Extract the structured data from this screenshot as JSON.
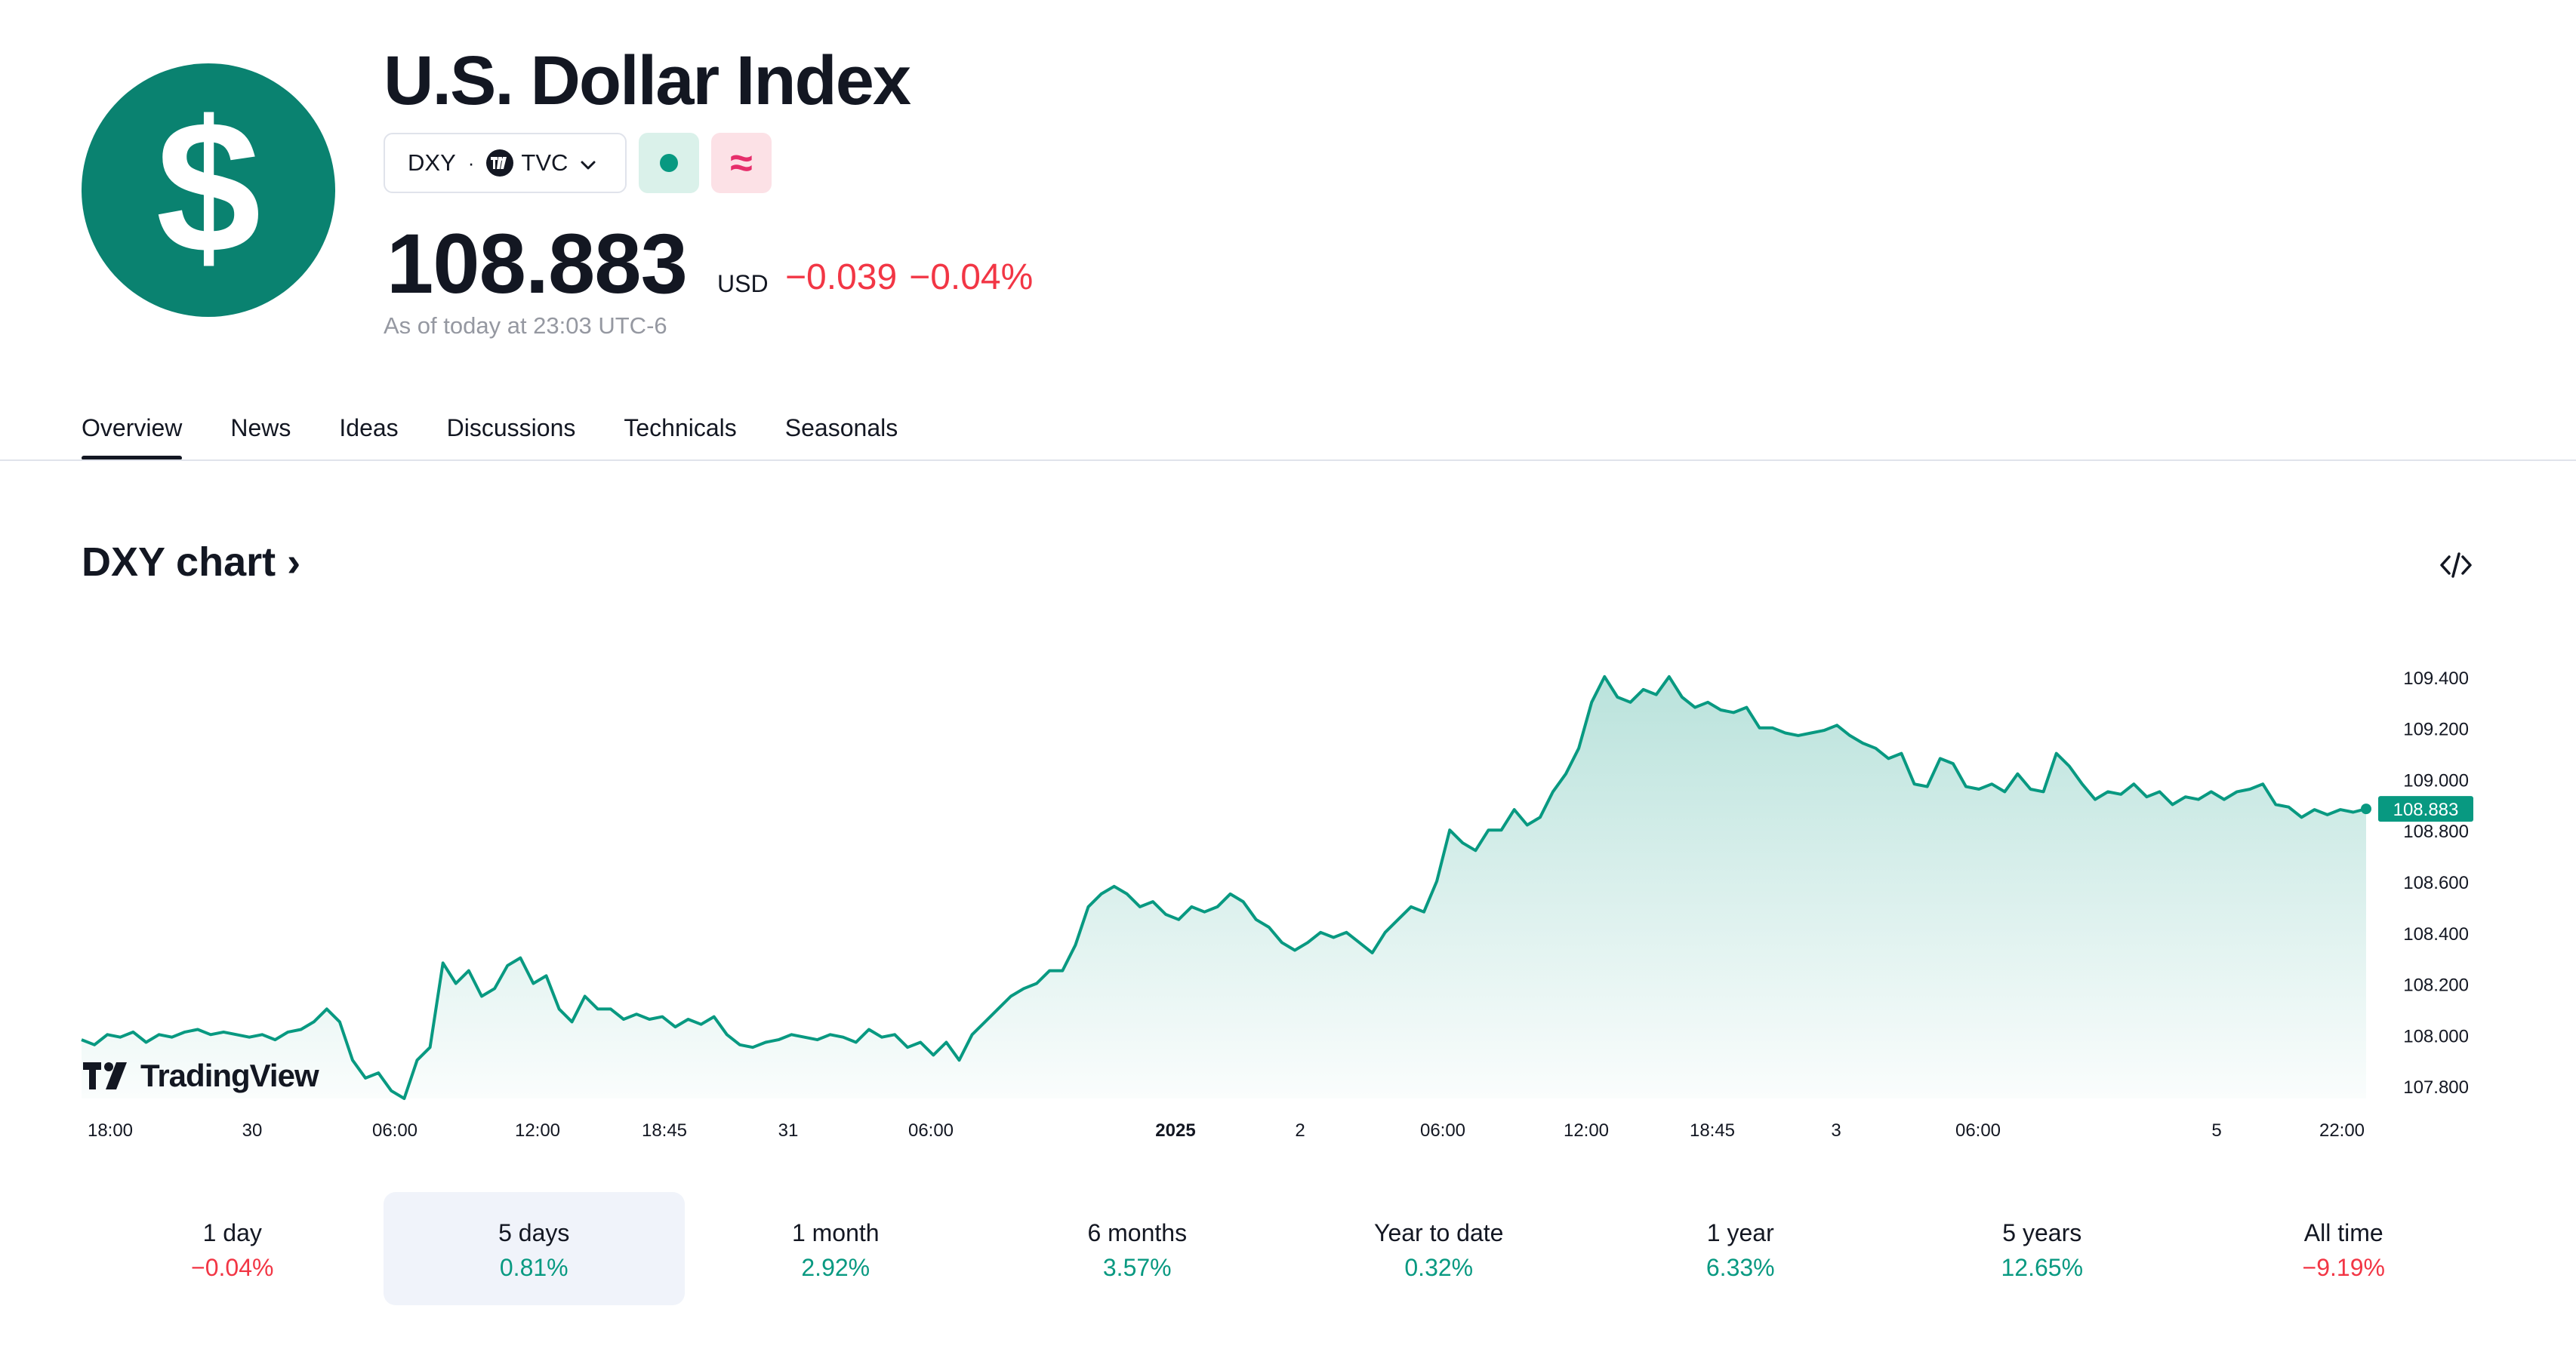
{
  "header": {
    "title": "U.S. Dollar Index",
    "logo_icon": "dollar-sign-icon",
    "symbol": "DXY",
    "separator": "·",
    "exchange": "TVC",
    "price": "108.883",
    "currency": "USD",
    "change_abs": "−0.039",
    "change_pct": "−0.04%",
    "as_of": "As of today at 23:03 UTC-6",
    "accent_color": "#0a8270"
  },
  "tabs": [
    {
      "label": "Overview",
      "active": true
    },
    {
      "label": "News"
    },
    {
      "label": "Ideas"
    },
    {
      "label": "Discussions"
    },
    {
      "label": "Technicals"
    },
    {
      "label": "Seasonals"
    }
  ],
  "chart_section": {
    "title": "DXY chart",
    "arrow": "›",
    "brand": "TradingView"
  },
  "chart_data": {
    "type": "area",
    "series": [
      {
        "name": "DXY",
        "color": "#089981",
        "values": [
          107.98,
          107.96,
          108.0,
          107.99,
          108.01,
          107.97,
          108.0,
          107.99,
          108.01,
          108.02,
          108.0,
          108.01,
          108.0,
          107.99,
          108.0,
          107.98,
          108.01,
          108.02,
          108.05,
          108.1,
          108.05,
          107.9,
          107.83,
          107.85,
          107.78,
          107.75,
          107.9,
          107.95,
          108.28,
          108.2,
          108.25,
          108.15,
          108.18,
          108.27,
          108.3,
          108.2,
          108.23,
          108.1,
          108.05,
          108.15,
          108.1,
          108.1,
          108.06,
          108.08,
          108.06,
          108.07,
          108.03,
          108.06,
          108.04,
          108.07,
          108.0,
          107.96,
          107.95,
          107.97,
          107.98,
          108.0,
          107.99,
          107.98,
          108.0,
          107.99,
          107.97,
          108.02,
          107.99,
          108.0,
          107.95,
          107.97,
          107.92,
          107.97,
          107.9,
          108.0,
          108.05,
          108.1,
          108.15,
          108.18,
          108.2,
          108.25,
          108.25,
          108.35,
          108.5,
          108.55,
          108.58,
          108.55,
          108.5,
          108.52,
          108.47,
          108.45,
          108.5,
          108.48,
          108.5,
          108.55,
          108.52,
          108.45,
          108.42,
          108.36,
          108.33,
          108.36,
          108.4,
          108.38,
          108.4,
          108.36,
          108.32,
          108.4,
          108.45,
          108.5,
          108.48,
          108.6,
          108.8,
          108.75,
          108.72,
          108.8,
          108.8,
          108.88,
          108.82,
          108.85,
          108.95,
          109.02,
          109.12,
          109.3,
          109.4,
          109.32,
          109.3,
          109.35,
          109.33,
          109.4,
          109.32,
          109.28,
          109.3,
          109.27,
          109.26,
          109.28,
          109.2,
          109.2,
          109.18,
          109.17,
          109.18,
          109.19,
          109.21,
          109.17,
          109.14,
          109.12,
          109.08,
          109.1,
          108.98,
          108.97,
          109.08,
          109.06,
          108.97,
          108.96,
          108.98,
          108.95,
          109.02,
          108.96,
          108.95,
          109.1,
          109.05,
          108.98,
          108.92,
          108.95,
          108.94,
          108.98,
          108.93,
          108.95,
          108.9,
          108.93,
          108.92,
          108.95,
          108.92,
          108.95,
          108.96,
          108.98,
          108.9,
          108.89,
          108.85,
          108.88,
          108.86,
          108.88,
          108.87,
          108.883
        ]
      }
    ],
    "x_ticks": [
      "18:00",
      "30",
      "06:00",
      "12:00",
      "18:45",
      "31",
      "06:00",
      "2025",
      "2",
      "06:00",
      "12:00",
      "18:45",
      "3",
      "06:00",
      "5",
      "22:00"
    ],
    "y_ticks": [
      "109.400",
      "109.200",
      "109.000",
      "108.800",
      "108.600",
      "108.400",
      "108.200",
      "108.000",
      "107.800"
    ],
    "ylim": [
      107.75,
      109.45
    ],
    "last_value_label": "108.883",
    "grid": false
  },
  "embed_icon": "code-embed-icon",
  "periods": [
    {
      "label": "1 day",
      "value": "−0.04%",
      "sign": "neg"
    },
    {
      "label": "5 days",
      "value": "0.81%",
      "sign": "pos",
      "active": true
    },
    {
      "label": "1 month",
      "value": "2.92%",
      "sign": "pos"
    },
    {
      "label": "6 months",
      "value": "3.57%",
      "sign": "pos"
    },
    {
      "label": "Year to date",
      "value": "0.32%",
      "sign": "pos"
    },
    {
      "label": "1 year",
      "value": "6.33%",
      "sign": "pos"
    },
    {
      "label": "5 years",
      "value": "12.65%",
      "sign": "pos"
    },
    {
      "label": "All time",
      "value": "−9.19%",
      "sign": "neg"
    }
  ]
}
